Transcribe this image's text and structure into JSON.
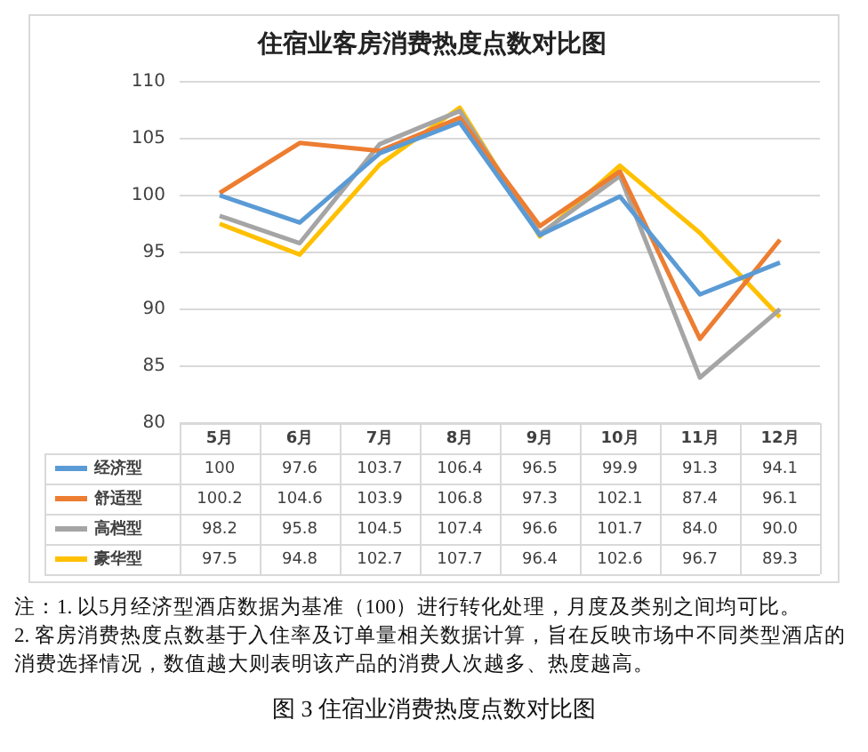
{
  "chart_data": {
    "type": "line",
    "title": "住宿业客房消费热度点数对比图",
    "categories": [
      "5月",
      "6月",
      "7月",
      "8月",
      "9月",
      "10月",
      "11月",
      "12月"
    ],
    "series": [
      {
        "name": "经济型",
        "color": "#5b9bd5",
        "values": [
          100,
          97.6,
          103.7,
          106.4,
          96.5,
          99.9,
          91.3,
          94.1
        ],
        "value_labels": [
          "100",
          "97.6",
          "103.7",
          "106.4",
          "96.5",
          "99.9",
          "91.3",
          "94.1"
        ]
      },
      {
        "name": "舒适型",
        "color": "#ed7d31",
        "values": [
          100.2,
          104.6,
          103.9,
          106.8,
          97.3,
          102.1,
          87.4,
          96.1
        ],
        "value_labels": [
          "100.2",
          "104.6",
          "103.9",
          "106.8",
          "97.3",
          "102.1",
          "87.4",
          "96.1"
        ]
      },
      {
        "name": "高档型",
        "color": "#a5a5a5",
        "values": [
          98.2,
          95.8,
          104.5,
          107.4,
          96.6,
          101.7,
          84.0,
          90.0
        ],
        "value_labels": [
          "98.2",
          "95.8",
          "104.5",
          "107.4",
          "96.6",
          "101.7",
          "84.0",
          "90.0"
        ]
      },
      {
        "name": "豪华型",
        "color": "#ffc000",
        "values": [
          97.5,
          94.8,
          102.7,
          107.7,
          96.4,
          102.6,
          96.7,
          89.3
        ],
        "value_labels": [
          "97.5",
          "94.8",
          "102.7",
          "107.7",
          "96.4",
          "102.6",
          "96.7",
          "89.3"
        ]
      }
    ],
    "ylim": [
      80,
      110
    ],
    "yticks": [
      80,
      85,
      90,
      95,
      100,
      105,
      110
    ],
    "grid": "y",
    "legend": "bottom",
    "marker": "none",
    "line_style": "solid",
    "annotations": [
      "注：1. 以5月经济型酒店数据为基准（100）进行转化处理，月度及类别之间均可比。",
      "2. 客房消费热度点数基于入住率及订单量相关数据计算，旨在反映市场中不同类型酒店的消费选择情况，数值越大则表明该产品的消费人次越多、热度越高。",
      "图 3  住宿业消费热度点数对比图"
    ]
  }
}
